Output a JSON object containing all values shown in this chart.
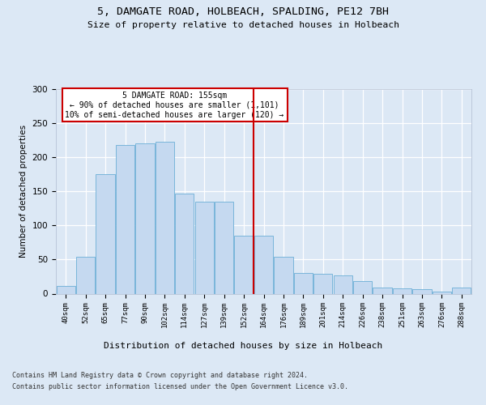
{
  "title_line1": "5, DAMGATE ROAD, HOLBEACH, SPALDING, PE12 7BH",
  "title_line2": "Size of property relative to detached houses in Holbeach",
  "xlabel": "Distribution of detached houses by size in Holbeach",
  "ylabel": "Number of detached properties",
  "bar_labels": [
    "40sqm",
    "52sqm",
    "65sqm",
    "77sqm",
    "90sqm",
    "102sqm",
    "114sqm",
    "127sqm",
    "139sqm",
    "152sqm",
    "164sqm",
    "176sqm",
    "189sqm",
    "201sqm",
    "214sqm",
    "226sqm",
    "238sqm",
    "251sqm",
    "263sqm",
    "276sqm",
    "288sqm"
  ],
  "bar_values": [
    11,
    54,
    175,
    218,
    220,
    223,
    147,
    135,
    135,
    85,
    85,
    54,
    30,
    29,
    27,
    19,
    9,
    8,
    6,
    3,
    9
  ],
  "bar_face_color": "#c5d9f0",
  "bar_edge_color": "#6baed6",
  "ref_line_color": "#cc0000",
  "annotation_title": "5 DAMGATE ROAD: 155sqm",
  "annotation_line1": "← 90% of detached houses are smaller (1,101)",
  "annotation_line2": "10% of semi-detached houses are larger (120) →",
  "annotation_box_edge": "#cc0000",
  "ylim": [
    0,
    300
  ],
  "yticks": [
    0,
    50,
    100,
    150,
    200,
    250,
    300
  ],
  "footer_line1": "Contains HM Land Registry data © Crown copyright and database right 2024.",
  "footer_line2": "Contains public sector information licensed under the Open Government Licence v3.0.",
  "bg_color": "#dce8f5",
  "plot_bg_color": "#dce8f5",
  "title_fontsize": 9,
  "subtitle_fontsize": 8
}
